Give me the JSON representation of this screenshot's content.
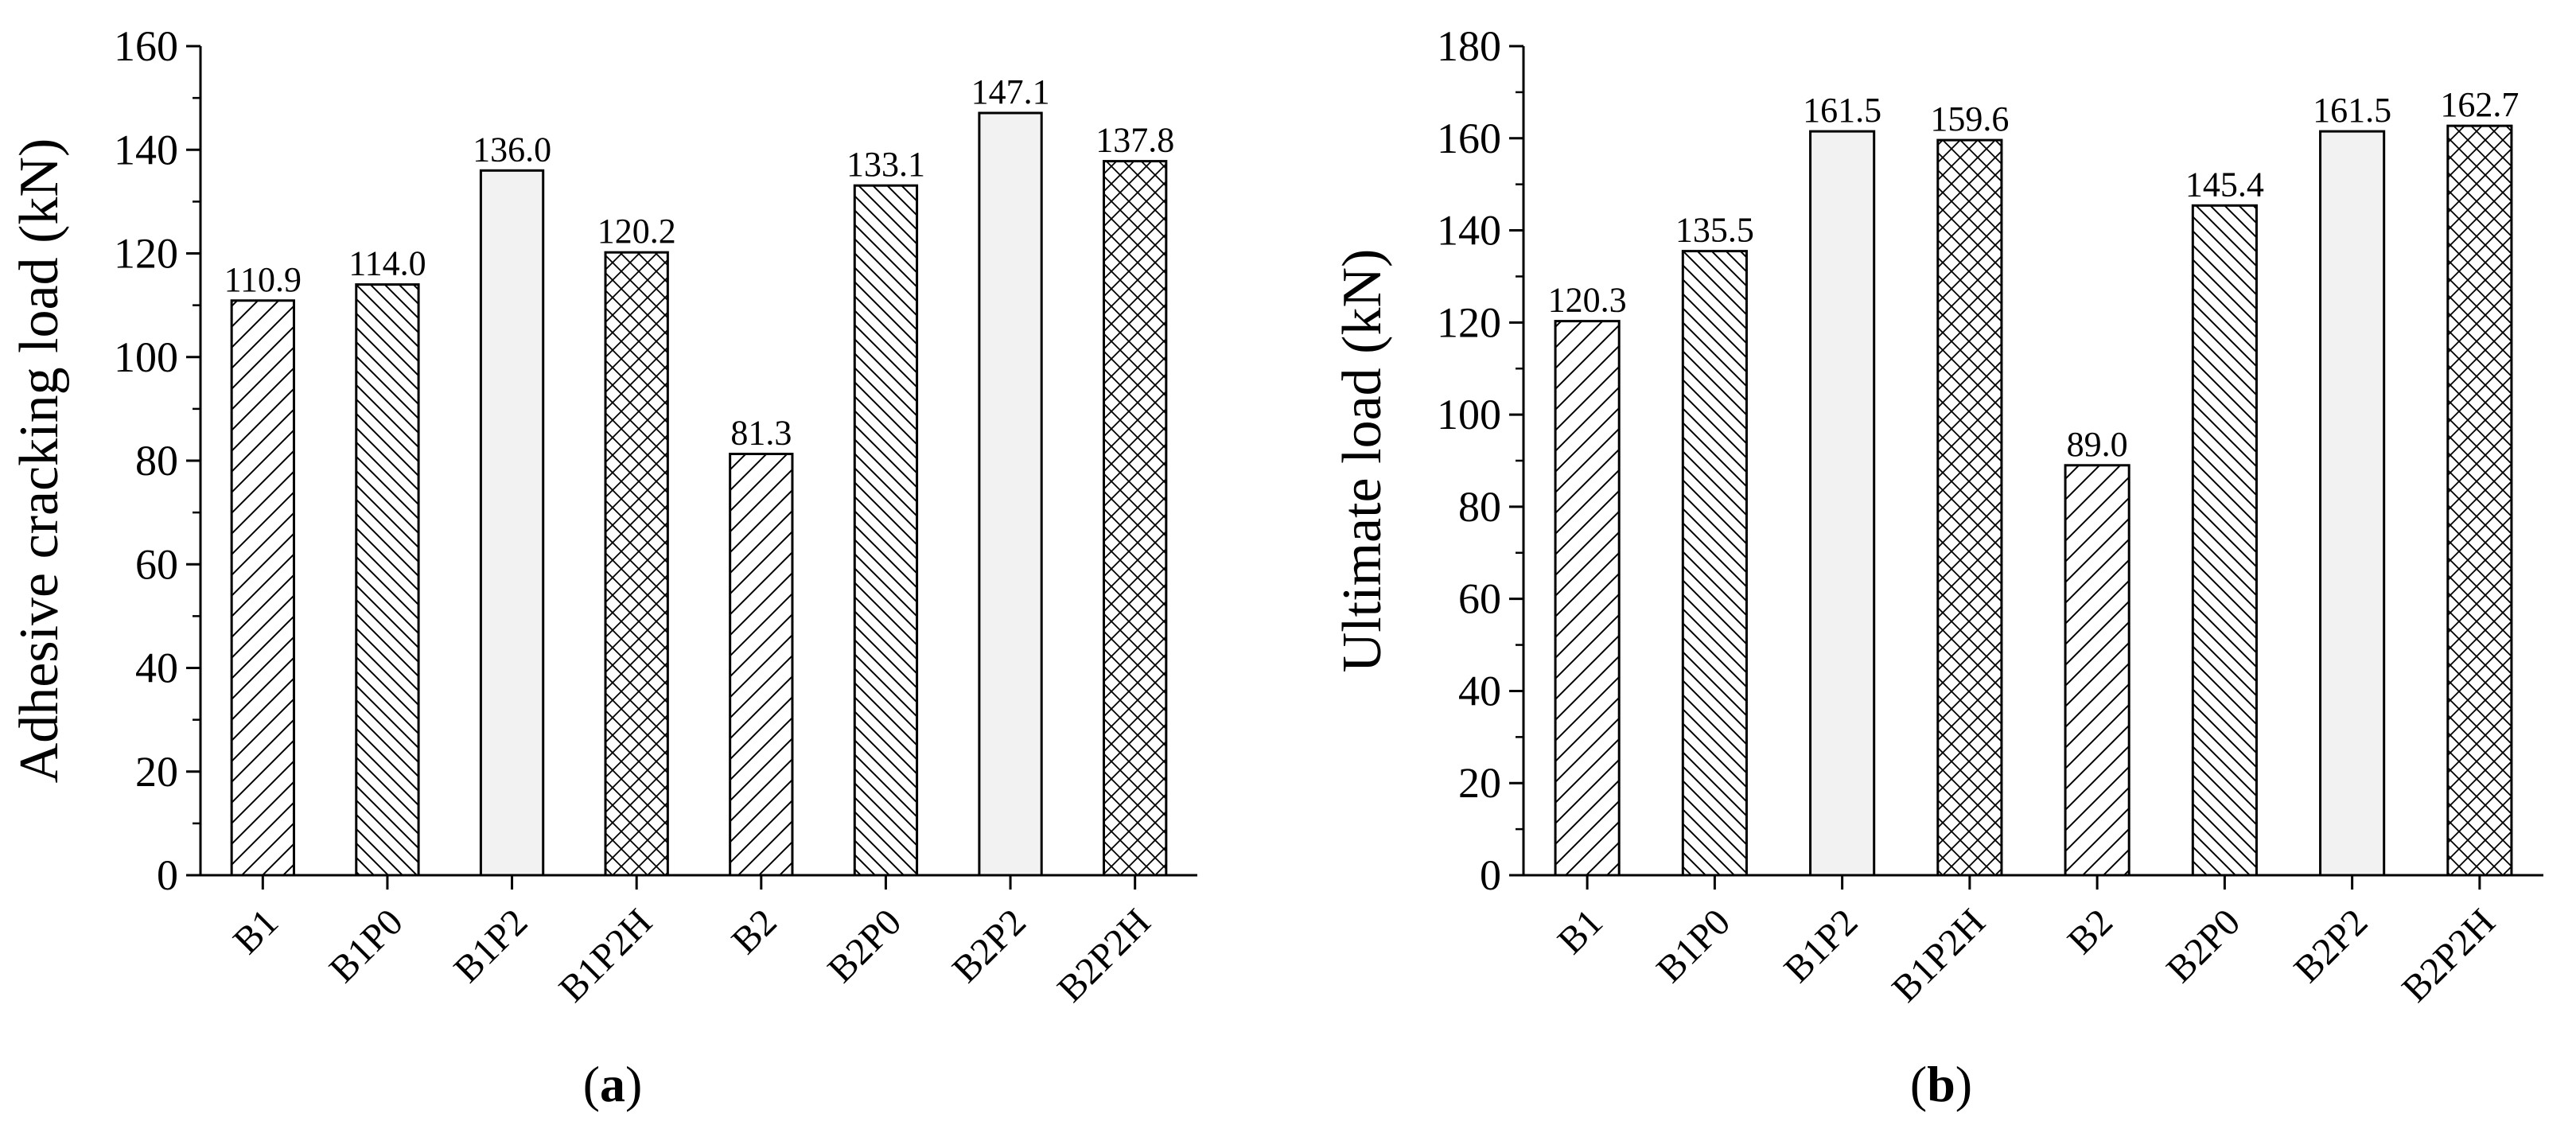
{
  "chart_data": [
    {
      "type": "bar",
      "panel": "a",
      "categories": [
        "B1",
        "B1P0",
        "B1P2",
        "B1P2H",
        "B2",
        "B2P0",
        "B2P2",
        "B2P2H"
      ],
      "values": [
        110.9,
        114.0,
        136.0,
        120.2,
        81.3,
        133.1,
        147.1,
        137.8
      ],
      "value_labels": [
        "110.9",
        "114.0",
        "136.0",
        "120.2",
        "81.3",
        "133.1",
        "147.1",
        "137.8"
      ],
      "patterns": [
        "diag-right",
        "diag-left",
        "solid",
        "cross",
        "diag-right",
        "diag-left",
        "solid",
        "cross"
      ],
      "title": "",
      "xlabel": "",
      "ylabel": "Adhesive cracking load (kN)",
      "ylim": [
        0,
        160
      ],
      "yticks": [
        0,
        20,
        40,
        60,
        80,
        100,
        120,
        140,
        160
      ],
      "grid": false
    },
    {
      "type": "bar",
      "panel": "b",
      "categories": [
        "B1",
        "B1P0",
        "B1P2",
        "B1P2H",
        "B2",
        "B2P0",
        "B2P2",
        "B2P2H"
      ],
      "values": [
        120.3,
        135.5,
        161.5,
        159.6,
        89.0,
        145.4,
        161.5,
        162.7
      ],
      "value_labels": [
        "120.3",
        "135.5",
        "161.5",
        "159.6",
        "89.0",
        "145.4",
        "161.5",
        "162.7"
      ],
      "patterns": [
        "diag-right",
        "diag-left",
        "solid",
        "cross",
        "diag-right",
        "diag-left",
        "solid",
        "cross"
      ],
      "title": "",
      "xlabel": "",
      "ylabel": "Ultimate load (kN)",
      "ylim": [
        0,
        180
      ],
      "yticks": [
        0,
        20,
        40,
        60,
        80,
        100,
        120,
        140,
        160,
        180
      ],
      "grid": false
    }
  ],
  "panel_labels": {
    "a": {
      "open": "(",
      "letter": "a",
      "close": ")"
    },
    "b": {
      "open": "(",
      "letter": "b",
      "close": ")"
    }
  },
  "colors": {
    "bar_fill": "#f2f2f2",
    "hatch": "#000000",
    "axis": "#000000"
  }
}
